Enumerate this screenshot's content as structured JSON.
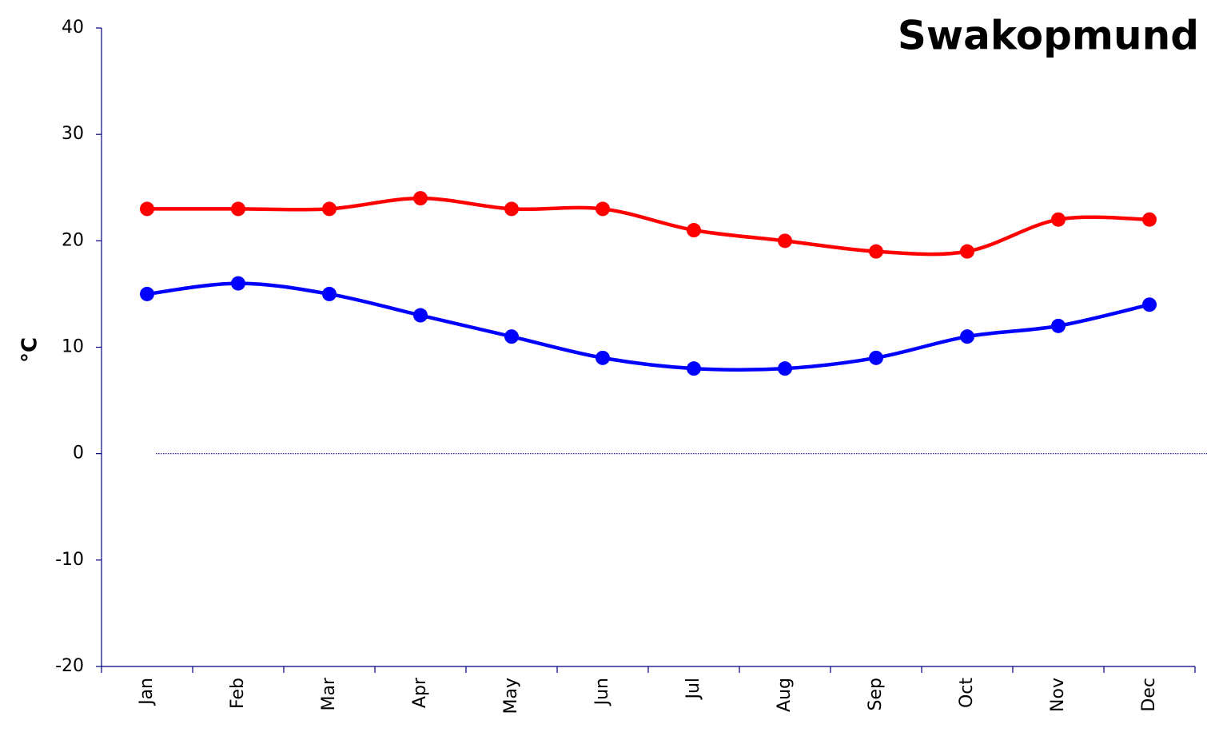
{
  "chart_data": {
    "type": "line",
    "title": "Swakopmund",
    "y_label": "°C",
    "categories": [
      "Jan",
      "Feb",
      "Mar",
      "Apr",
      "May",
      "Jun",
      "Jul",
      "Aug",
      "Sep",
      "Oct",
      "Nov",
      "Dec"
    ],
    "series": [
      {
        "color": "#ff0000",
        "values": [
          23,
          23,
          23,
          24,
          23,
          23,
          21,
          20,
          19,
          19,
          22,
          22
        ]
      },
      {
        "color": "#0000ff",
        "values": [
          15,
          16,
          15,
          13,
          11,
          9,
          8,
          8,
          9,
          11,
          12,
          14
        ]
      }
    ],
    "ylim": [
      -20,
      40
    ],
    "yticks": [
      -20,
      -10,
      0,
      10,
      20,
      30,
      40
    ],
    "zero_line": true,
    "smooth": true
  }
}
